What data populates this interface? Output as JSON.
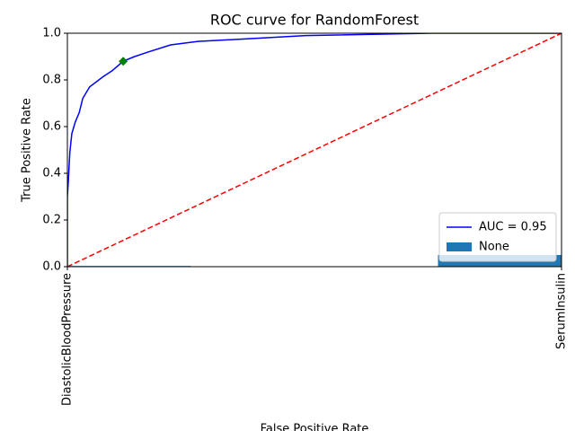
{
  "chart_data": {
    "type": "line",
    "title": "ROC curve for RandomForest",
    "xlabel": "False Positive Rate",
    "ylabel": "True Positive Rate",
    "xlim": [
      0,
      1
    ],
    "ylim": [
      0,
      1
    ],
    "yticks": [
      {
        "value": 0,
        "label": "0.0"
      },
      0.2,
      0.4,
      0.6,
      0.8,
      {
        "value": 1,
        "label": "1.0"
      }
    ],
    "series": [
      {
        "name": "AUC = 0.95",
        "color": "#0000ff",
        "x": [
          0,
          0,
          0.002,
          0.005,
          0.009,
          0.016,
          0.024,
          0.031,
          0.045,
          0.073,
          0.091,
          0.113,
          0.136,
          0.164,
          0.209,
          0.264,
          0.355,
          0.482,
          0.736,
          1
        ],
        "values": [
          0,
          0.3,
          0.37,
          0.49,
          0.57,
          0.62,
          0.66,
          0.72,
          0.77,
          0.815,
          0.84,
          0.88,
          0.9,
          0.92,
          0.95,
          0.965,
          0.975,
          0.99,
          1,
          1
        ]
      }
    ],
    "reference_line": {
      "color": "#ff0000",
      "x": [
        0,
        1
      ],
      "values": [
        0,
        1
      ]
    },
    "threshold_point": {
      "color": "#008000",
      "x": 0.113,
      "value": 0.88
    },
    "bars": {
      "name": "None",
      "color": "#1f77b4",
      "categories": [
        "DiastolicBloodPressure",
        "SerumInsulin"
      ],
      "values": [
        0.003,
        0.05
      ]
    },
    "legend": "lower right"
  }
}
